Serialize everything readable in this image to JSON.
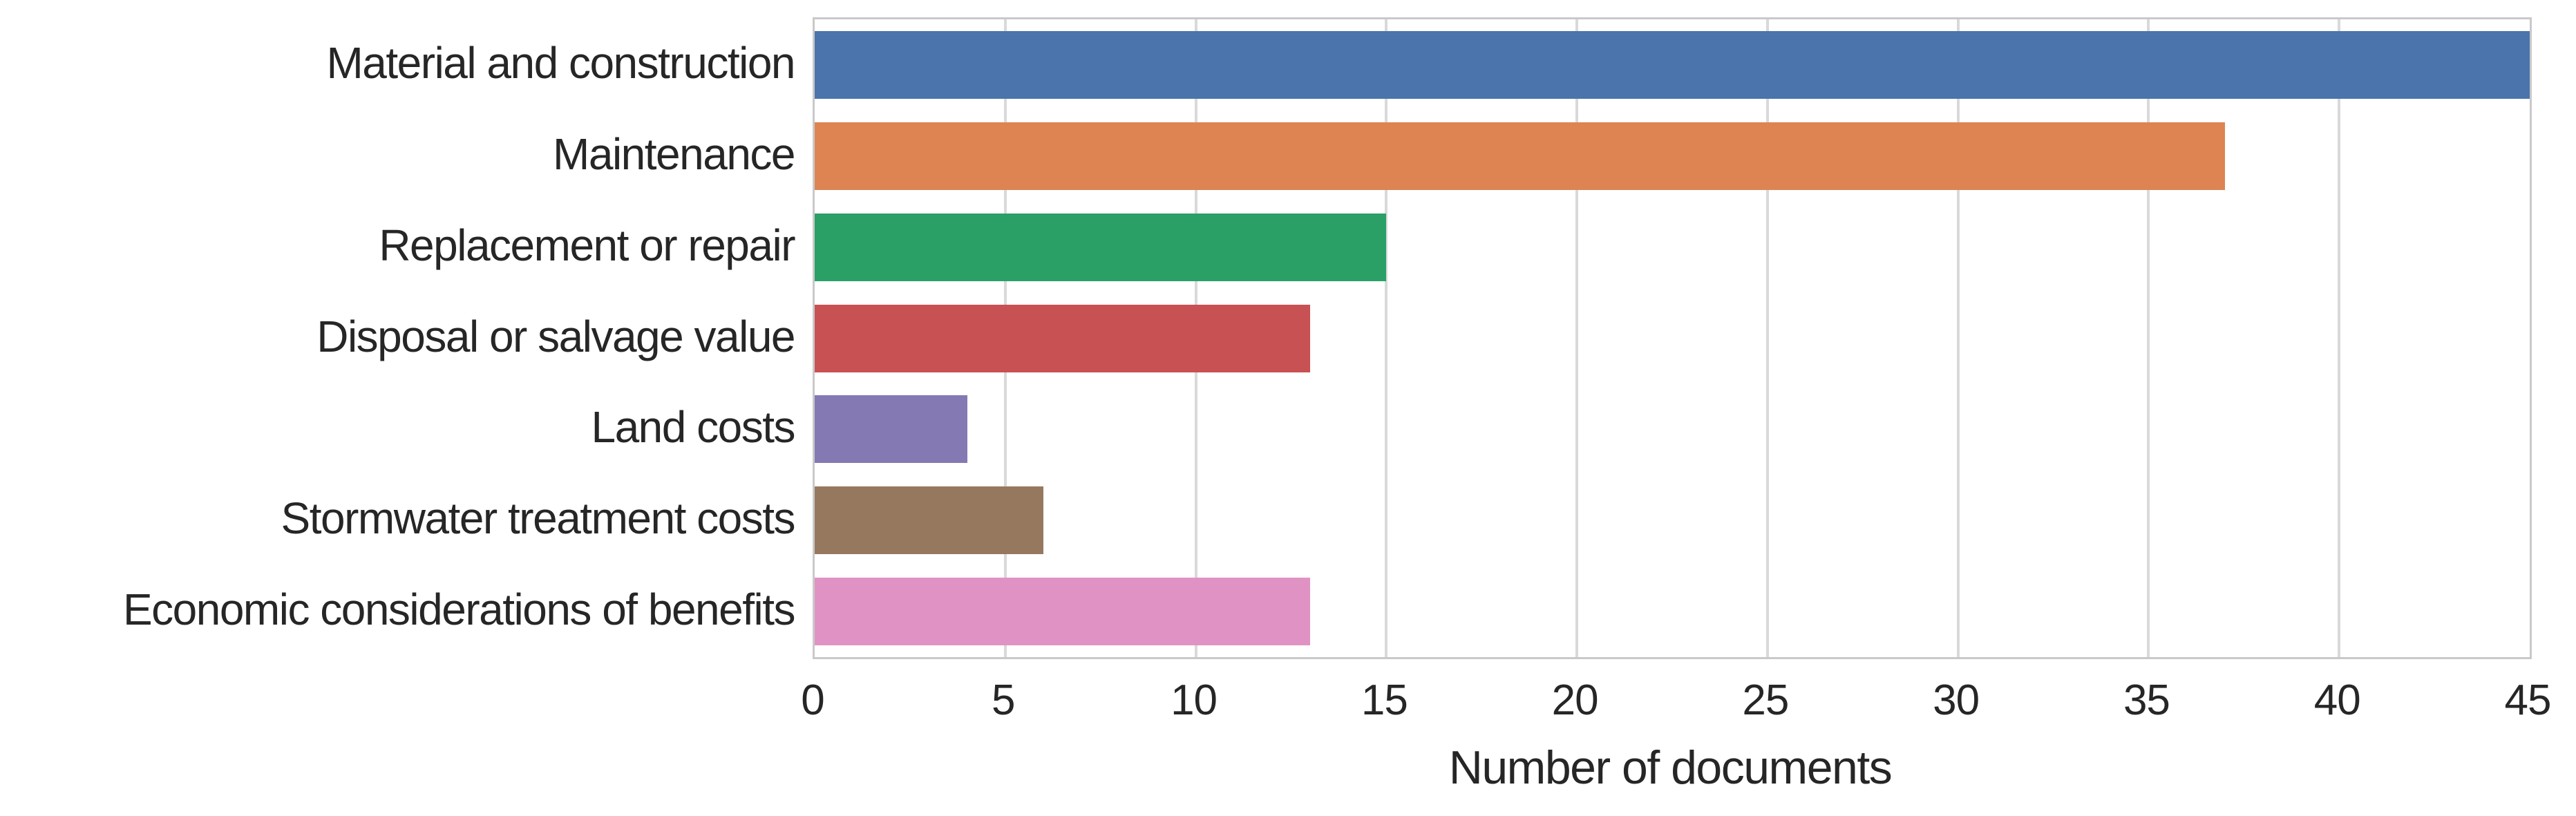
{
  "figure": {
    "background": "#ffffff",
    "text_color": "#262626",
    "grid_color": "#d9d9d9",
    "spine_color": "#c9c9c9"
  },
  "chart_data": {
    "type": "bar",
    "orientation": "horizontal",
    "title": "",
    "xlabel": "Number of documents",
    "ylabel": "",
    "xlim": [
      0,
      45
    ],
    "xticks": [
      0,
      5,
      10,
      15,
      20,
      25,
      30,
      35,
      40,
      45
    ],
    "grid": true,
    "legend": false,
    "categories": [
      "Material and construction",
      "Maintenance",
      "Replacement or repair",
      "Disposal or salvage value",
      "Land costs",
      "Stormwater treatment costs",
      "Economic considerations of benefits"
    ],
    "values": [
      45,
      37,
      15,
      13,
      4,
      6,
      13
    ],
    "bar_colors": [
      "#4A74AB",
      "#DD8452",
      "#2AA066",
      "#C85154",
      "#8579B3",
      "#96785F",
      "#E192C4"
    ]
  }
}
